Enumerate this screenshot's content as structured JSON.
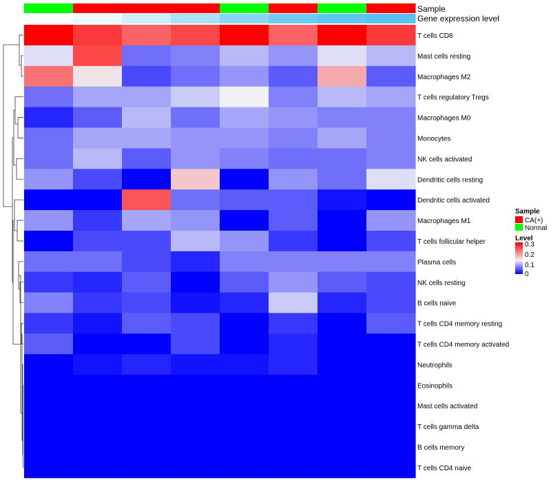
{
  "chart_data": {
    "type": "heatmap",
    "annotations": {
      "sample": {
        "label": "Sample",
        "values": [
          "Normal",
          "CA(+)",
          "CA(+)",
          "CA(+)",
          "Normal",
          "CA(+)",
          "Normal",
          "CA(+)"
        ]
      },
      "gene_expression": {
        "label": "Gene expression level",
        "values": [
          0.0,
          0.1,
          0.3,
          0.5,
          0.7,
          0.85,
          0.95,
          1.0
        ]
      }
    },
    "rows": [
      "T cells CD8",
      "Mast cells resting",
      "Macrophages M2",
      "T cells regulatory  Tregs",
      "Macrophages M0",
      "Monocytes",
      "NK cells activated",
      "Dendritic cells resting",
      "Dendritic cells activated",
      "Macrophages M1",
      "T cells follicular helper",
      "Plasma cells",
      "NK cells resting",
      "B cells naive",
      "T cells CD4 memory resting",
      "T cells CD4 memory activated",
      "Neutrophils",
      "Eosinophils",
      "Mast cells activated",
      "T cells gamma delta",
      "B cells memory",
      "T cells CD4 naive"
    ],
    "values": [
      [
        0.3,
        0.26,
        0.23,
        0.25,
        0.3,
        0.23,
        0.3,
        0.26
      ],
      [
        0.12,
        0.25,
        0.06,
        0.07,
        0.1,
        0.08,
        0.12,
        0.1
      ],
      [
        0.22,
        0.14,
        0.04,
        0.06,
        0.08,
        0.05,
        0.18,
        0.05
      ],
      [
        0.06,
        0.09,
        0.09,
        0.11,
        0.13,
        0.07,
        0.1,
        0.09
      ],
      [
        0.02,
        0.05,
        0.1,
        0.06,
        0.09,
        0.08,
        0.07,
        0.07
      ],
      [
        0.06,
        0.09,
        0.09,
        0.08,
        0.08,
        0.07,
        0.09,
        0.07
      ],
      [
        0.06,
        0.1,
        0.05,
        0.08,
        0.07,
        0.06,
        0.06,
        0.07
      ],
      [
        0.08,
        0.04,
        0.0,
        0.16,
        0.0,
        0.08,
        0.06,
        0.12
      ],
      [
        0.0,
        0.0,
        0.24,
        0.06,
        0.05,
        0.05,
        0.01,
        0.0
      ],
      [
        0.08,
        0.03,
        0.09,
        0.08,
        0.0,
        0.05,
        0.0,
        0.08
      ],
      [
        0.0,
        0.04,
        0.04,
        0.1,
        0.08,
        0.03,
        0.0,
        0.04
      ],
      [
        0.06,
        0.06,
        0.04,
        0.02,
        0.07,
        0.07,
        0.07,
        0.07
      ],
      [
        0.03,
        0.02,
        0.05,
        0.0,
        0.05,
        0.08,
        0.05,
        0.04
      ],
      [
        0.07,
        0.03,
        0.04,
        0.01,
        0.02,
        0.11,
        0.02,
        0.04
      ],
      [
        0.03,
        0.01,
        0.05,
        0.04,
        0.0,
        0.03,
        0.0,
        0.05
      ],
      [
        0.05,
        0.0,
        0.0,
        0.04,
        0.0,
        0.02,
        0.0,
        0.0
      ],
      [
        0.0,
        0.01,
        0.02,
        0.01,
        0.01,
        0.02,
        0.0,
        0.0
      ],
      [
        0.0,
        0.0,
        0.0,
        0.0,
        0.0,
        0.0,
        0.0,
        0.0
      ],
      [
        0.0,
        0.0,
        0.0,
        0.0,
        0.0,
        0.0,
        0.0,
        0.0
      ],
      [
        0.0,
        0.0,
        0.0,
        0.0,
        0.0,
        0.0,
        0.0,
        0.0
      ],
      [
        0.0,
        0.0,
        0.0,
        0.0,
        0.0,
        0.0,
        0.0,
        0.0
      ],
      [
        0.0,
        0.0,
        0.0,
        0.0,
        0.0,
        0.0,
        0.0,
        0.0
      ]
    ],
    "color_scale": {
      "min": 0,
      "mid": 0.13,
      "max": 0.3,
      "low_color": "#0000ff",
      "mid_color": "#f0f0f5",
      "high_color": "#ff0000"
    },
    "legend": {
      "sample": {
        "title": "Sample",
        "items": [
          {
            "label": "CA(+)",
            "color": "#ff0000"
          },
          {
            "label": "Normal",
            "color": "#00ff00"
          }
        ]
      },
      "level": {
        "title": "Level",
        "ticks": [
          "0.3",
          "0.2",
          "0.1",
          "0"
        ]
      },
      "placement": "right"
    },
    "sample_colors": {
      "Normal": "#00ff00",
      "CA(+)": "#ff0000"
    },
    "gene_expression_colors": {
      "low": "#ffffff",
      "high": "#56c3ee"
    },
    "dendrogram": "rows, left side",
    "grid": false
  }
}
